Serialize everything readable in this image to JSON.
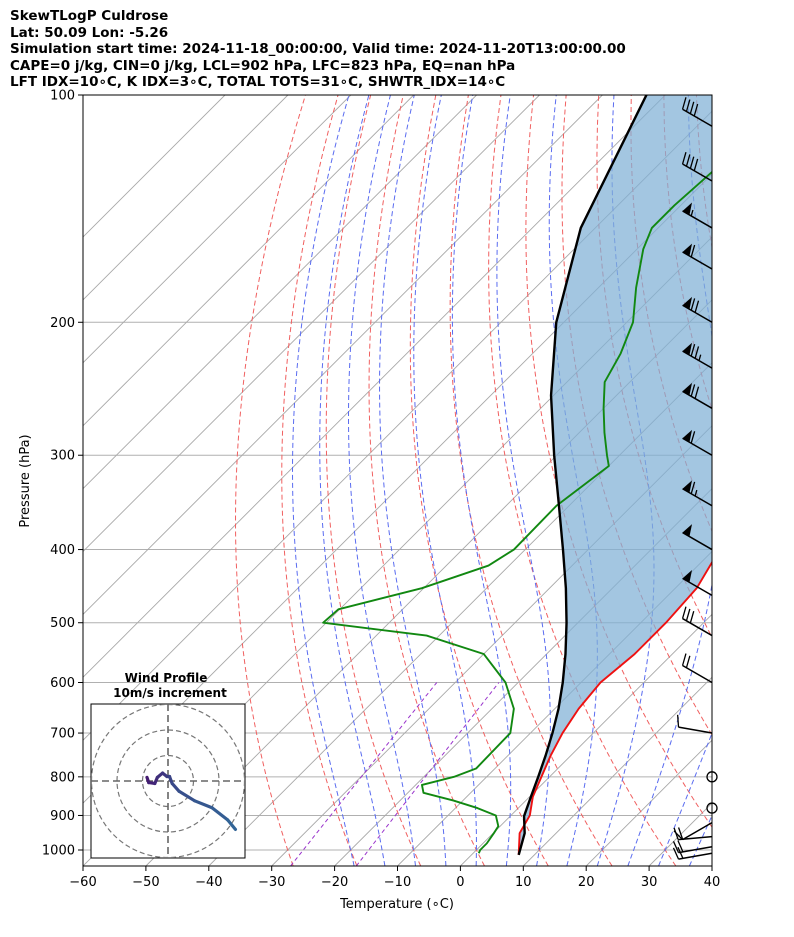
{
  "header": {
    "line1": "SkewTLogP Culdrose",
    "line2": "Lat: 50.09   Lon: -5.26",
    "line3": "Simulation start time: 2024-11-18_00:00:00, Valid time: 2024-11-20T13:00:00.00",
    "line4": "CAPE=0 j/kg, CIN=0 j/kg, LCL=902 hPa, LFC=823 hPa, EQ=nan hPa",
    "line5": "LFT IDX=10∘C, K IDX=3∘C, TOTAL TOTS=31∘C, SHWTR_IDX=14∘C"
  },
  "chart_data": {
    "type": "line",
    "chart_kind": "skew-T log-P diagram",
    "xlabel": "Temperature (∘C)",
    "ylabel": "Pressure (hPa)",
    "xlim": [
      -60,
      40
    ],
    "ylim": [
      1050,
      100
    ],
    "x_ticks": [
      "−60",
      "−50",
      "−40",
      "−30",
      "−20",
      "−10",
      "0",
      "10",
      "20",
      "30",
      "40"
    ],
    "y_ticks": [
      "1000",
      "900",
      "800",
      "700",
      "600",
      "500",
      "400",
      "300",
      "200",
      "100"
    ],
    "y_scale": "log",
    "grid": true,
    "series": [
      {
        "role": "temperature",
        "color": "#ee1111",
        "points": [
          [
            1015,
            7.5
          ],
          [
            950,
            4.2
          ],
          [
            900,
            3.0
          ],
          [
            850,
            0.5
          ],
          [
            800,
            -1.3
          ],
          [
            750,
            -3.2
          ],
          [
            700,
            -4.9
          ],
          [
            650,
            -6.2
          ],
          [
            600,
            -6.9
          ],
          [
            550,
            -6.0
          ],
          [
            500,
            -6.0
          ],
          [
            450,
            -6.6
          ],
          [
            400,
            -9.1
          ],
          [
            350,
            -13.8
          ],
          [
            320,
            -17.7
          ],
          [
            300,
            -21.0
          ],
          [
            280,
            -24.5
          ],
          [
            250,
            -30.5
          ],
          [
            220,
            -37.2
          ],
          [
            200,
            -41.9
          ],
          [
            180,
            -44.5
          ],
          [
            160,
            -46.2
          ],
          [
            140,
            -47.8
          ],
          [
            120,
            -49.4
          ],
          [
            100,
            -51.0
          ]
        ]
      },
      {
        "role": "dewpoint",
        "color": "#118811",
        "points": [
          [
            1010,
            0.9
          ],
          [
            1000,
            0.6
          ],
          [
            980,
            0.6
          ],
          [
            950,
            0.1
          ],
          [
            930,
            -0.3
          ],
          [
            900,
            -2.4
          ],
          [
            880,
            -6.5
          ],
          [
            860,
            -11.5
          ],
          [
            840,
            -17.5
          ],
          [
            820,
            -19.0
          ],
          [
            800,
            -15.2
          ],
          [
            780,
            -13.0
          ],
          [
            700,
            -13.2
          ],
          [
            650,
            -16.5
          ],
          [
            600,
            -22.0
          ],
          [
            550,
            -30.0
          ],
          [
            520,
            -42.0
          ],
          [
            500,
            -60.5
          ],
          [
            480,
            -60.2
          ],
          [
            450,
            -50.3
          ],
          [
            420,
            -43.3
          ],
          [
            400,
            -41.8
          ],
          [
            350,
            -42.0
          ],
          [
            310,
            -40.0
          ],
          [
            300,
            -42.0
          ],
          [
            280,
            -46.0
          ],
          [
            260,
            -50.0
          ],
          [
            240,
            -54.0
          ],
          [
            220,
            -56.0
          ],
          [
            200,
            -59.0
          ],
          [
            180,
            -64.0
          ],
          [
            160,
            -69.0
          ],
          [
            150,
            -71.0
          ],
          [
            140,
            -71.0
          ],
          [
            120,
            -70.0
          ],
          [
            100,
            -70.0
          ]
        ]
      },
      {
        "role": "parcel",
        "color": "#000000",
        "points": [
          [
            1015,
            7.5
          ],
          [
            950,
            5.0
          ],
          [
            902,
            2.2
          ],
          [
            850,
            0.2
          ],
          [
            800,
            -1.8
          ],
          [
            750,
            -4.0
          ],
          [
            700,
            -6.5
          ],
          [
            650,
            -9.4
          ],
          [
            600,
            -12.9
          ],
          [
            550,
            -17.0
          ],
          [
            500,
            -21.8
          ],
          [
            450,
            -27.4
          ],
          [
            400,
            -34.0
          ],
          [
            350,
            -41.6
          ],
          [
            300,
            -50.4
          ],
          [
            250,
            -60.4
          ],
          [
            200,
            -71.2
          ],
          [
            150,
            -82.3
          ],
          [
            100,
            -93.0
          ]
        ]
      }
    ],
    "wind_barbs": [
      {
        "p": 1010,
        "speed_kt": 20,
        "dir_deg": 260
      },
      {
        "p": 990,
        "speed_kt": 20,
        "dir_deg": 260
      },
      {
        "p": 960,
        "speed_kt": 20,
        "dir_deg": 265
      },
      {
        "p": 920,
        "speed_kt": 10,
        "dir_deg": 240
      },
      {
        "p": 880,
        "speed_kt": 0,
        "dir_deg": 0
      },
      {
        "p": 800,
        "speed_kt": 0,
        "dir_deg": 0
      },
      {
        "p": 700,
        "speed_kt": 10,
        "dir_deg": 280
      },
      {
        "p": 600,
        "speed_kt": 20,
        "dir_deg": 300
      },
      {
        "p": 520,
        "speed_kt": 30,
        "dir_deg": 300
      },
      {
        "p": 460,
        "speed_kt": 50,
        "dir_deg": 300
      },
      {
        "p": 400,
        "speed_kt": 50,
        "dir_deg": 300
      },
      {
        "p": 350,
        "speed_kt": 65,
        "dir_deg": 300
      },
      {
        "p": 300,
        "speed_kt": 60,
        "dir_deg": 300
      },
      {
        "p": 260,
        "speed_kt": 70,
        "dir_deg": 300
      },
      {
        "p": 230,
        "speed_kt": 75,
        "dir_deg": 300
      },
      {
        "p": 200,
        "speed_kt": 70,
        "dir_deg": 300
      },
      {
        "p": 170,
        "speed_kt": 60,
        "dir_deg": 300
      },
      {
        "p": 150,
        "speed_kt": 55,
        "dir_deg": 300
      },
      {
        "p": 130,
        "speed_kt": 40,
        "dir_deg": 300
      },
      {
        "p": 110,
        "speed_kt": 40,
        "dir_deg": 300
      }
    ],
    "inset": {
      "title_line1": "Wind Profile",
      "title_line2": "10m/s increment",
      "hodograph": [
        [
          -1.5,
          0.3
        ],
        [
          -1.3,
          -0.3
        ],
        [
          -0.6,
          -0.4
        ],
        [
          -0.3,
          0.3
        ],
        [
          0.3,
          0.8
        ],
        [
          0.8,
          0.4
        ],
        [
          1.1,
          0.4
        ],
        [
          1.4,
          -0.4
        ],
        [
          2.2,
          -1.3
        ],
        [
          4.0,
          -2.4
        ],
        [
          6.0,
          -3.2
        ],
        [
          7.8,
          -4.6
        ],
        [
          8.7,
          -5.7
        ]
      ],
      "ring_spacing_ms": 10
    }
  }
}
